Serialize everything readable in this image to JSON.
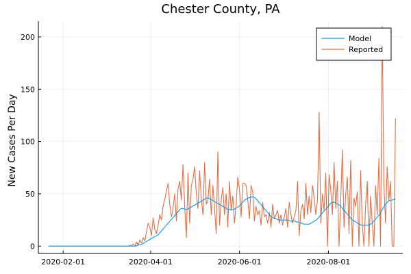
{
  "chart_data": {
    "type": "line",
    "title": "Chester County, PA",
    "xlabel": "",
    "ylabel": "New Cases Per Day",
    "x_start": "2020-01-22",
    "x_end": "2020-09-16",
    "xlim": [
      "2020-01-15",
      "2020-09-21"
    ],
    "ylim": [
      -7,
      215
    ],
    "x_ticks": [
      "2020-02-01",
      "2020-04-01",
      "2020-06-01",
      "2020-08-01"
    ],
    "y_ticks": [
      0,
      50,
      100,
      150,
      200
    ],
    "grid": true,
    "legend_position": "top-right",
    "series": [
      {
        "name": "Model",
        "color": "#009AFA",
        "values": [
          0,
          0,
          0,
          0,
          0,
          0,
          0,
          0,
          0,
          0,
          0,
          0,
          0,
          0,
          0,
          0,
          0,
          0,
          0,
          0,
          0,
          0,
          0,
          0,
          0,
          0,
          0,
          0,
          0,
          0,
          0,
          0,
          0,
          0,
          0,
          0,
          0,
          0,
          0,
          0,
          0,
          0,
          0,
          0,
          0,
          0,
          0,
          0,
          0,
          0.5,
          1,
          1.5,
          2,
          3,
          4,
          5,
          6,
          7,
          8,
          9,
          10,
          11,
          13,
          15,
          17,
          19,
          21,
          23,
          25,
          27,
          29,
          31,
          33,
          35,
          36,
          36,
          35,
          35,
          36,
          37,
          38,
          39,
          40,
          41,
          42,
          43,
          44,
          45,
          46,
          46,
          45,
          44,
          43,
          42,
          41,
          40,
          39,
          38,
          37,
          36,
          35,
          35,
          35,
          35,
          36,
          37,
          38,
          40,
          42,
          44,
          45,
          46,
          46.5,
          47,
          47,
          46,
          44,
          42,
          40,
          38,
          36,
          34,
          32,
          30,
          28,
          27,
          26,
          26,
          25,
          25,
          25,
          25,
          25,
          25,
          24,
          24,
          24,
          24,
          23,
          23,
          22,
          22,
          21,
          21,
          21,
          21,
          22,
          23,
          24,
          25,
          27,
          29,
          31,
          33,
          35,
          37,
          39,
          41,
          42,
          42,
          41,
          40,
          39,
          37,
          35,
          33,
          31,
          29,
          27,
          25,
          24,
          23,
          22,
          21,
          20,
          20,
          20,
          20,
          20,
          21,
          22,
          24,
          26,
          28,
          30,
          33,
          36,
          39,
          41,
          43,
          44,
          44,
          44.5,
          45
        ]
      },
      {
        "name": "Reported",
        "color": "#E26F46",
        "values": [
          0,
          0,
          0,
          0,
          0,
          0,
          0,
          0,
          0,
          0,
          0,
          0,
          0,
          0,
          0,
          0,
          0,
          0,
          0,
          0,
          0,
          0,
          0,
          0,
          0,
          0,
          0,
          0,
          0,
          0,
          0,
          0,
          0,
          0,
          0,
          0,
          0,
          0,
          0,
          0,
          0,
          0,
          0,
          0,
          0,
          0,
          0,
          0,
          0,
          1,
          0,
          2,
          0,
          4,
          1,
          6,
          3,
          8,
          5,
          14,
          22,
          18,
          10,
          27,
          16,
          12,
          20,
          30,
          25,
          38,
          45,
          52,
          60,
          40,
          28,
          36,
          50,
          24,
          55,
          62,
          44,
          78,
          38,
          8,
          70,
          22,
          58,
          64,
          76,
          50,
          36,
          72,
          45,
          30,
          80,
          40,
          44,
          64,
          30,
          58,
          36,
          12,
          90,
          20,
          44,
          56,
          30,
          50,
          18,
          62,
          34,
          48,
          22,
          40,
          66,
          54,
          28,
          60,
          60,
          58,
          44,
          26,
          58,
          52,
          24,
          38,
          30,
          34,
          20,
          42,
          28,
          30,
          22,
          32,
          18,
          40,
          26,
          30,
          34,
          22,
          30,
          20,
          28,
          36,
          18,
          42,
          30,
          22,
          28,
          34,
          62,
          10,
          34,
          40,
          26,
          60,
          30,
          48,
          32,
          58,
          46,
          30,
          44,
          128,
          22,
          50,
          34,
          70,
          0,
          68,
          54,
          30,
          80,
          36,
          62,
          0,
          44,
          92,
          18,
          50,
          66,
          12,
          82,
          0,
          46,
          38,
          52,
          0,
          72,
          20,
          0,
          40,
          62,
          0,
          48,
          22,
          0,
          58,
          30,
          84,
          0,
          210,
          60,
          22,
          76,
          44,
          62,
          0,
          0,
          122
        ]
      }
    ]
  }
}
